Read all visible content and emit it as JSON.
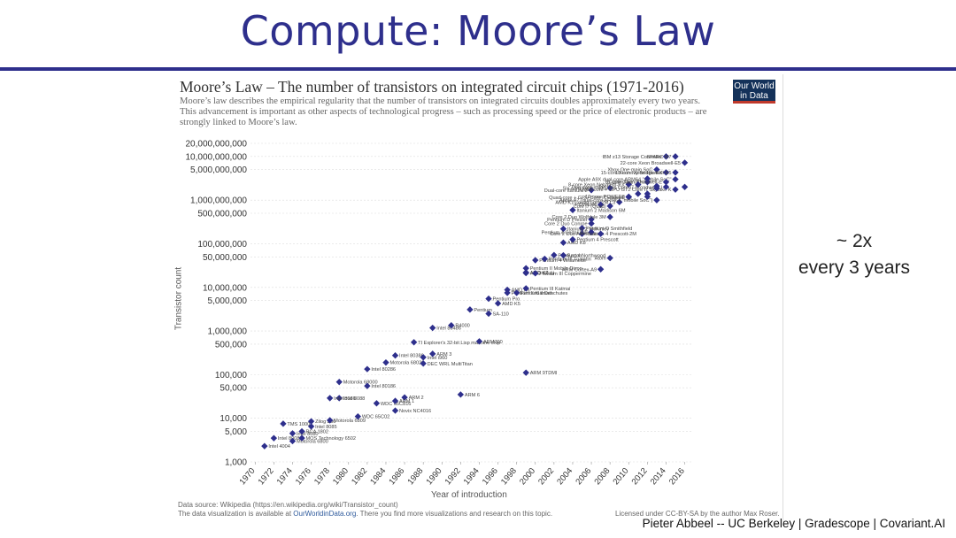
{
  "slide": {
    "title": "Compute: Moore’s Law",
    "side_note_line1": "~ 2x",
    "side_note_line2": "every 3 years",
    "footer": "Pieter Abbeel -- UC Berkeley | Gradescope | Covariant.AI"
  },
  "logo": {
    "line1": "Our World",
    "line2": "in Data"
  },
  "sources": {
    "line1": "Data source: Wikipedia (https://en.wikipedia.org/wiki/Transistor_count)",
    "line2_pre": "The data visualization is available at ",
    "line2_link": "OurWorldinData.org",
    "line2_post": ". There you find more visualizations and research on this topic.",
    "license": "Licensed under CC-BY-SA by the author Max Roser."
  },
  "colors": {
    "accent": "#2e2f8c",
    "point": "#2e2f8c",
    "grid": "#dddddd"
  },
  "chart_data": {
    "type": "scatter",
    "title": "Moore’s Law – The number of transistors on integrated circuit chips (1971-2016)",
    "subtitle_lines": [
      "Moore’s law describes the empirical regularity that the number of transistors on integrated circuits doubles approximately every two years.",
      "This advancement is important as other aspects of technological progress – such as processing speed or the price of electronic products – are",
      "strongly linked to Moore’s law."
    ],
    "xlabel": "Year of introduction",
    "ylabel": "Transistor count",
    "yscale": "log",
    "xlim": [
      1969.5,
      2016.8
    ],
    "ylim": [
      1000,
      20000000000
    ],
    "grid": true,
    "x_ticks": [
      1970,
      1972,
      1974,
      1976,
      1978,
      1980,
      1982,
      1984,
      1986,
      1988,
      1990,
      1992,
      1994,
      1996,
      1998,
      2000,
      2002,
      2004,
      2006,
      2008,
      2010,
      2012,
      2014,
      2016
    ],
    "y_ticks": [
      {
        "v": 1000,
        "label": "1,000"
      },
      {
        "v": 5000,
        "label": "5,000"
      },
      {
        "v": 10000,
        "label": "10,000"
      },
      {
        "v": 50000,
        "label": "50,000"
      },
      {
        "v": 100000,
        "label": "100,000"
      },
      {
        "v": 500000,
        "label": "500,000"
      },
      {
        "v": 1000000,
        "label": "1,000,000"
      },
      {
        "v": 5000000,
        "label": "5,000,000"
      },
      {
        "v": 10000000,
        "label": "10,000,000"
      },
      {
        "v": 50000000,
        "label": "50,000,000"
      },
      {
        "v": 100000000,
        "label": "100,000,000"
      },
      {
        "v": 500000000,
        "label": "500,000,000"
      },
      {
        "v": 1000000000,
        "label": "1,000,000,000"
      },
      {
        "v": 5000000000,
        "label": "5,000,000,000"
      },
      {
        "v": 10000000000,
        "label": "10,000,000,000"
      },
      {
        "v": 20000000000,
        "label": "20,000,000,000"
      }
    ],
    "points": [
      {
        "x": 1971,
        "y": 2300,
        "label": "Intel 4004"
      },
      {
        "x": 1972,
        "y": 3500,
        "label": "Intel 8008"
      },
      {
        "x": 1974,
        "y": 3000,
        "label": "Motorola 6800"
      },
      {
        "x": 1975,
        "y": 3510,
        "label": "MOS Technology 6502"
      },
      {
        "x": 1974,
        "y": 4500,
        "label": "Intel 8080"
      },
      {
        "x": 1976,
        "y": 6500,
        "label": "Intel 8085"
      },
      {
        "x": 1976,
        "y": 8500,
        "label": "Zilog Z80"
      },
      {
        "x": 1975,
        "y": 5000,
        "label": "RCA 1802"
      },
      {
        "x": 1973,
        "y": 7500,
        "label": "TMS 1000"
      },
      {
        "x": 1978,
        "y": 9000,
        "label": "Motorola 6809"
      },
      {
        "x": 1979,
        "y": 29000,
        "label": "Intel 8088"
      },
      {
        "x": 1978,
        "y": 29000,
        "label": "Intel 8086"
      },
      {
        "x": 1979,
        "y": 68000,
        "label": "Motorola 68000"
      },
      {
        "x": 1981,
        "y": 11000,
        "label": "WDC 65C02"
      },
      {
        "x": 1982,
        "y": 55000,
        "label": "Intel 80186"
      },
      {
        "x": 1982,
        "y": 134000,
        "label": "Intel 80286"
      },
      {
        "x": 1983,
        "y": 22000,
        "label": "WDC 65C816"
      },
      {
        "x": 1985,
        "y": 275000,
        "label": "Intel 80386"
      },
      {
        "x": 1984,
        "y": 190000,
        "label": "Motorola 68020"
      },
      {
        "x": 1986,
        "y": 30000,
        "label": "ARM 2"
      },
      {
        "x": 1985,
        "y": 25000,
        "label": "ARM 1"
      },
      {
        "x": 1985,
        "y": 15000,
        "label": "Novix NC4016"
      },
      {
        "x": 1987,
        "y": 553000,
        "label": "TI Explorer's 32-bit Lisp machine chip"
      },
      {
        "x": 1988,
        "y": 250000,
        "label": "Intel i960"
      },
      {
        "x": 1989,
        "y": 300000,
        "label": "ARM 3"
      },
      {
        "x": 1988,
        "y": 180000,
        "label": "DEC WRL MultiTitan"
      },
      {
        "x": 1989,
        "y": 1180235,
        "label": "Intel 80486"
      },
      {
        "x": 1991,
        "y": 1350000,
        "label": "R4000"
      },
      {
        "x": 1992,
        "y": 35000,
        "label": "ARM 6"
      },
      {
        "x": 1994,
        "y": 578977,
        "label": "ARM700"
      },
      {
        "x": 1993,
        "y": 3100000,
        "label": "Pentium"
      },
      {
        "x": 1995,
        "y": 5500000,
        "label": "Pentium Pro"
      },
      {
        "x": 1996,
        "y": 4300000,
        "label": "AMD K5"
      },
      {
        "x": 1995,
        "y": 2500000,
        "label": "SA-110"
      },
      {
        "x": 1997,
        "y": 7500000,
        "label": "Pentium II Klamath"
      },
      {
        "x": 1997,
        "y": 8800000,
        "label": "AMD K6"
      },
      {
        "x": 1998,
        "y": 7500000,
        "label": "Pentium II Deschutes"
      },
      {
        "x": 1999,
        "y": 9500000,
        "label": "Pentium III Katmai"
      },
      {
        "x": 1999,
        "y": 21300000,
        "label": "AMD K6-III"
      },
      {
        "x": 1999,
        "y": 22000000,
        "label": "AMD K7"
      },
      {
        "x": 1999,
        "y": 27400000,
        "label": "Pentium II Mobile Dixon"
      },
      {
        "x": 2000,
        "y": 21000000,
        "label": "Pentium III Coppermine"
      },
      {
        "x": 2000,
        "y": 42000000,
        "label": "Pentium 4 Willamette"
      },
      {
        "x": 2001,
        "y": 45000000,
        "label": "Pentium III Tualatin"
      },
      {
        "x": 2002,
        "y": 55000000,
        "label": "Pentium 4 Northwood"
      },
      {
        "x": 2003,
        "y": 54300000,
        "label": "Barton"
      },
      {
        "x": 1999,
        "y": 111000,
        "label": "ARM 9TDMI"
      },
      {
        "x": 2003,
        "y": 105900000,
        "label": "AMD K8"
      },
      {
        "x": 2004,
        "y": 125000000,
        "label": "Pentium 4 Prescott"
      },
      {
        "x": 2005,
        "y": 169000000,
        "label": "Pentium 4 Prescott-2M"
      },
      {
        "x": 2005,
        "y": 228000000,
        "label": "Pentium D Smithfield"
      },
      {
        "x": 2003,
        "y": 220000000,
        "label": "Itanium 2 McKinley"
      },
      {
        "x": 2004,
        "y": 592000000,
        "label": "Itanium 2 Madison 6M"
      },
      {
        "x": 2006,
        "y": 184000000,
        "label": "Pentium 4 Cedar Mill"
      },
      {
        "x": 2006,
        "y": 291000000,
        "label": "Core 2 Duo Conroe"
      },
      {
        "x": 2006,
        "y": 362000000,
        "label": "Pentium D Presler"
      },
      {
        "x": 2007,
        "y": 169000000,
        "label": "Core 2 Duo Allendale"
      },
      {
        "x": 2008,
        "y": 410000000,
        "label": "Core 2 Duo Wolfdale 3M"
      },
      {
        "x": 2008,
        "y": 47000000,
        "label": "Atom"
      },
      {
        "x": 2007,
        "y": 26000000,
        "label": "ARM Cortex-A9"
      },
      {
        "x": 2006,
        "y": 1700000000,
        "label": "Dual-core Itanium 2"
      },
      {
        "x": 2007,
        "y": 789000000,
        "label": "POWER6"
      },
      {
        "x": 2008,
        "y": 731000000,
        "label": "Core i7 (Quad)"
      },
      {
        "x": 2009,
        "y": 904000000,
        "label": "AMD K10 quad-core 2M L3"
      },
      {
        "x": 2008,
        "y": 1900000000,
        "label": "Six-core Xeon 7400"
      },
      {
        "x": 2010,
        "y": 2300000000,
        "label": "8-core Xeon Nehalem-EX"
      },
      {
        "x": 2010,
        "y": 1170000000,
        "label": "Quad-core + GPU Core i7 Haswell"
      },
      {
        "x": 2010,
        "y": 1200000000,
        "label": "12-core POWER8"
      },
      {
        "x": 2012,
        "y": 2600000000,
        "label": "61-core Xeon Phi"
      },
      {
        "x": 2013,
        "y": 5000000000,
        "label": "Xbox One main SoC"
      },
      {
        "x": 2014,
        "y": 4310000000,
        "label": "15-core Xeon Ivy Bridge-EX"
      },
      {
        "x": 2015,
        "y": 4300000000,
        "label": "18-core Xeon Haswell-E5"
      },
      {
        "x": 2014,
        "y": 10000000000,
        "label": "IBM z13 Storage Controller"
      },
      {
        "x": 2015,
        "y": 10000000000,
        "label": "SPARC M7"
      },
      {
        "x": 2016,
        "y": 7200000000,
        "label": "22-core Xeon Broadwell-E5"
      },
      {
        "x": 2015,
        "y": 3000000000,
        "label": "Apple A9X dual-core ARM64 \"mobile SoC\""
      },
      {
        "x": 2015,
        "y": 1750000000,
        "label": "Quad-core + GPU GT2 Core i7 Skylake K"
      },
      {
        "x": 2014,
        "y": 2000000000,
        "label": "Duo-core + GPU Iris Core i7 Broadwell-U"
      },
      {
        "x": 2013,
        "y": 1000000000,
        "label": "Apple A7 (dual-core ARM64 \"mobile SoC\")"
      },
      {
        "x": 2014,
        "y": 2600000000,
        "label": "8-core Core i7 Haswell-E"
      },
      {
        "x": 2011,
        "y": 2270000000,
        "label": ""
      },
      {
        "x": 2011,
        "y": 1400000000,
        "label": ""
      },
      {
        "x": 2012,
        "y": 1400000000,
        "label": ""
      },
      {
        "x": 2012,
        "y": 3100000000,
        "label": ""
      },
      {
        "x": 2013,
        "y": 1860000000,
        "label": ""
      },
      {
        "x": 2013,
        "y": 2100000000,
        "label": ""
      },
      {
        "x": 2012,
        "y": 1200000000,
        "label": ""
      },
      {
        "x": 2016,
        "y": 2000000000,
        "label": ""
      }
    ]
  }
}
